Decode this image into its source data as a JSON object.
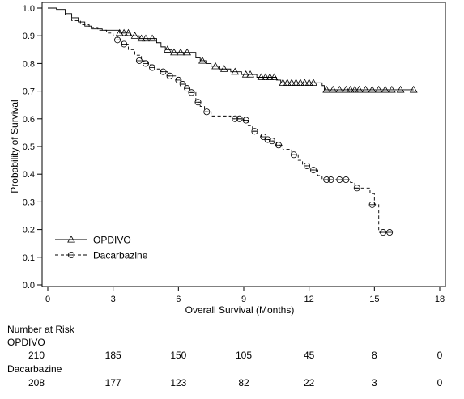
{
  "chart_data": {
    "type": "line",
    "subtype": "kaplan-meier",
    "title": "",
    "xlabel": "Overall Survival (Months)",
    "ylabel": "Probability of Survival",
    "xlim": [
      0,
      18
    ],
    "ylim": [
      0,
      1.0
    ],
    "x_ticks": [
      0,
      3,
      6,
      9,
      12,
      15,
      18
    ],
    "y_ticks": [
      0.0,
      0.1,
      0.2,
      0.3,
      0.4,
      0.5,
      0.6,
      0.7,
      0.8,
      0.9,
      1.0
    ],
    "x_tick_labels": [
      "0",
      "3",
      "6",
      "9",
      "12",
      "15",
      "18"
    ],
    "y_tick_labels": [
      "0.0",
      "0.1",
      "0.2",
      "0.3",
      "0.4",
      "0.5",
      "0.6",
      "0.7",
      "0.8",
      "0.9",
      "1.0"
    ],
    "grid": false,
    "legend_placement": "bottom-left",
    "series": [
      {
        "name": "OPDIVO",
        "line_style": "solid",
        "censor_marker": "triangle",
        "steps": [
          [
            0,
            1.0
          ],
          [
            0.4,
            0.995
          ],
          [
            0.8,
            0.98
          ],
          [
            1.1,
            0.965
          ],
          [
            1.4,
            0.95
          ],
          [
            1.7,
            0.935
          ],
          [
            2.0,
            0.925
          ],
          [
            2.5,
            0.92
          ],
          [
            3.3,
            0.91
          ],
          [
            3.8,
            0.9
          ],
          [
            4.2,
            0.89
          ],
          [
            5.0,
            0.875
          ],
          [
            5.2,
            0.86
          ],
          [
            5.4,
            0.85
          ],
          [
            5.7,
            0.84
          ],
          [
            6.8,
            0.82
          ],
          [
            7.0,
            0.81
          ],
          [
            7.3,
            0.8
          ],
          [
            7.5,
            0.79
          ],
          [
            7.9,
            0.78
          ],
          [
            8.4,
            0.77
          ],
          [
            8.9,
            0.76
          ],
          [
            9.6,
            0.75
          ],
          [
            10.5,
            0.74
          ],
          [
            10.7,
            0.73
          ],
          [
            12.6,
            0.72
          ],
          [
            12.7,
            0.705
          ]
        ],
        "end_x": 16.8,
        "censored": [
          [
            3.3,
            0.91
          ],
          [
            3.5,
            0.91
          ],
          [
            3.7,
            0.91
          ],
          [
            4.0,
            0.9
          ],
          [
            4.3,
            0.89
          ],
          [
            4.5,
            0.89
          ],
          [
            4.8,
            0.89
          ],
          [
            5.5,
            0.85
          ],
          [
            5.8,
            0.84
          ],
          [
            6.1,
            0.84
          ],
          [
            6.4,
            0.84
          ],
          [
            7.1,
            0.81
          ],
          [
            7.7,
            0.79
          ],
          [
            8.1,
            0.78
          ],
          [
            8.6,
            0.77
          ],
          [
            9.1,
            0.76
          ],
          [
            9.3,
            0.76
          ],
          [
            9.8,
            0.75
          ],
          [
            10.0,
            0.75
          ],
          [
            10.2,
            0.75
          ],
          [
            10.4,
            0.75
          ],
          [
            10.8,
            0.73
          ],
          [
            11.0,
            0.73
          ],
          [
            11.2,
            0.73
          ],
          [
            11.4,
            0.73
          ],
          [
            11.6,
            0.73
          ],
          [
            11.8,
            0.73
          ],
          [
            12.0,
            0.73
          ],
          [
            12.2,
            0.73
          ],
          [
            12.8,
            0.705
          ],
          [
            13.1,
            0.705
          ],
          [
            13.4,
            0.705
          ],
          [
            13.7,
            0.705
          ],
          [
            13.9,
            0.705
          ],
          [
            14.1,
            0.705
          ],
          [
            14.3,
            0.705
          ],
          [
            14.6,
            0.705
          ],
          [
            14.9,
            0.705
          ],
          [
            15.2,
            0.705
          ],
          [
            15.5,
            0.705
          ],
          [
            15.8,
            0.705
          ],
          [
            16.2,
            0.705
          ],
          [
            16.8,
            0.705
          ]
        ]
      },
      {
        "name": "Dacarbazine",
        "line_style": "dashed",
        "censor_marker": "circle",
        "steps": [
          [
            0,
            1.0
          ],
          [
            0.4,
            0.99
          ],
          [
            0.8,
            0.975
          ],
          [
            1.1,
            0.955
          ],
          [
            1.5,
            0.94
          ],
          [
            1.9,
            0.93
          ],
          [
            2.3,
            0.92
          ],
          [
            2.7,
            0.91
          ],
          [
            3.0,
            0.9
          ],
          [
            3.2,
            0.885
          ],
          [
            3.4,
            0.87
          ],
          [
            3.7,
            0.85
          ],
          [
            4.0,
            0.83
          ],
          [
            4.3,
            0.81
          ],
          [
            4.6,
            0.795
          ],
          [
            4.9,
            0.78
          ],
          [
            5.2,
            0.77
          ],
          [
            5.5,
            0.755
          ],
          [
            5.9,
            0.74
          ],
          [
            6.1,
            0.725
          ],
          [
            6.3,
            0.71
          ],
          [
            6.5,
            0.695
          ],
          [
            6.8,
            0.66
          ],
          [
            7.0,
            0.645
          ],
          [
            7.2,
            0.625
          ],
          [
            7.5,
            0.61
          ],
          [
            8.4,
            0.6
          ],
          [
            9.0,
            0.595
          ],
          [
            9.2,
            0.575
          ],
          [
            9.4,
            0.555
          ],
          [
            9.6,
            0.545
          ],
          [
            9.8,
            0.535
          ],
          [
            10.0,
            0.525
          ],
          [
            10.2,
            0.52
          ],
          [
            10.5,
            0.505
          ],
          [
            10.8,
            0.49
          ],
          [
            11.2,
            0.47
          ],
          [
            11.5,
            0.45
          ],
          [
            11.7,
            0.43
          ],
          [
            12.0,
            0.415
          ],
          [
            12.4,
            0.395
          ],
          [
            12.6,
            0.38
          ],
          [
            13.2,
            0.38
          ],
          [
            13.9,
            0.37
          ],
          [
            14.1,
            0.35
          ],
          [
            14.8,
            0.33
          ],
          [
            15.0,
            0.29
          ],
          [
            15.2,
            0.19
          ]
        ],
        "end_x": 15.7,
        "censored": [
          [
            3.2,
            0.885
          ],
          [
            3.5,
            0.87
          ],
          [
            4.2,
            0.81
          ],
          [
            4.5,
            0.8
          ],
          [
            4.8,
            0.785
          ],
          [
            5.3,
            0.77
          ],
          [
            5.6,
            0.755
          ],
          [
            6.0,
            0.74
          ],
          [
            6.2,
            0.725
          ],
          [
            6.4,
            0.71
          ],
          [
            6.6,
            0.695
          ],
          [
            6.9,
            0.66
          ],
          [
            7.3,
            0.625
          ],
          [
            8.6,
            0.6
          ],
          [
            8.8,
            0.6
          ],
          [
            9.1,
            0.595
          ],
          [
            9.5,
            0.555
          ],
          [
            9.9,
            0.535
          ],
          [
            10.1,
            0.525
          ],
          [
            10.3,
            0.52
          ],
          [
            10.6,
            0.505
          ],
          [
            11.3,
            0.47
          ],
          [
            11.9,
            0.43
          ],
          [
            12.2,
            0.415
          ],
          [
            12.8,
            0.38
          ],
          [
            13.0,
            0.38
          ],
          [
            13.4,
            0.38
          ],
          [
            13.7,
            0.38
          ],
          [
            14.2,
            0.35
          ],
          [
            14.9,
            0.29
          ],
          [
            15.4,
            0.19
          ],
          [
            15.7,
            0.19
          ]
        ]
      }
    ],
    "risk_table": {
      "heading": "Number at Risk",
      "timepoints": [
        0,
        3,
        6,
        9,
        12,
        15,
        18
      ],
      "rows": [
        {
          "label": "OPDIVO",
          "values": [
            "210",
            "185",
            "150",
            "105",
            "45",
            "8",
            "0"
          ]
        },
        {
          "label": "Dacarbazine",
          "values": [
            "208",
            "177",
            "123",
            "82",
            "22",
            "3",
            "0"
          ]
        }
      ]
    }
  }
}
